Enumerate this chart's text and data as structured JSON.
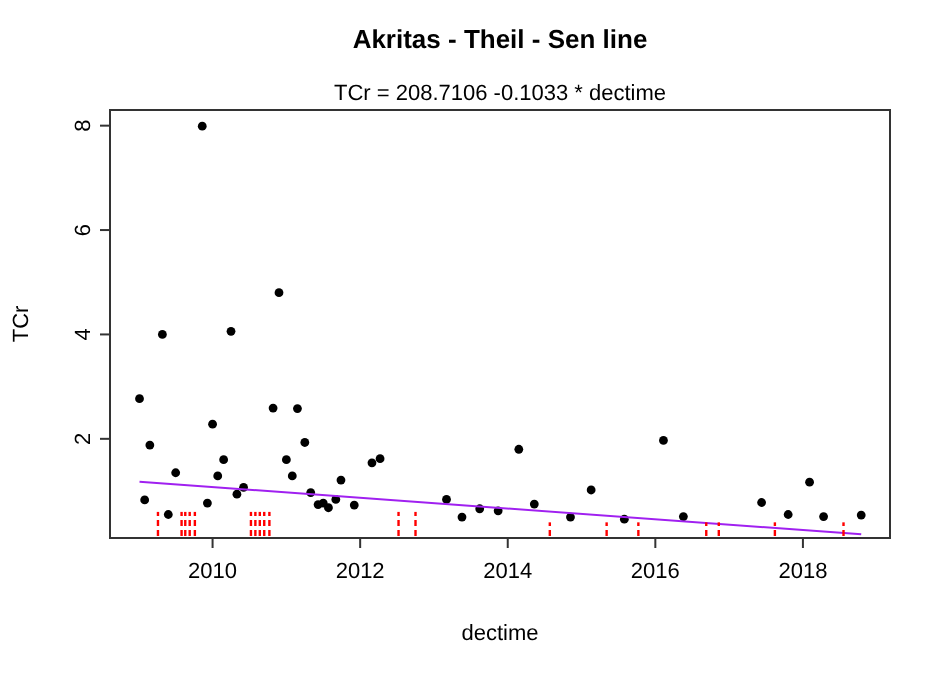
{
  "chart_data": {
    "type": "scatter",
    "title": "Akritas - Theil - Sen line",
    "subtitle": "TCr = 208.7106 -0.1033 * dectime",
    "xlabel": "dectime",
    "ylabel": "TCr",
    "xlim": [
      2008.61,
      2019.18
    ],
    "ylim": [
      0.1,
      8.3
    ],
    "xticks": [
      2010,
      2012,
      2014,
      2016,
      2018
    ],
    "yticks": [
      2,
      4,
      6,
      8
    ],
    "grid": false,
    "series": [
      {
        "color": "#000000",
        "marker": "circle",
        "x": [
          2009.01,
          2009.08,
          2009.15,
          2009.32,
          2009.4,
          2009.5,
          2009.86,
          2009.93,
          2010.0,
          2010.07,
          2010.15,
          2010.25,
          2010.33,
          2010.42,
          2010.82,
          2010.9,
          2011.0,
          2011.08,
          2011.15,
          2011.25,
          2011.33,
          2011.43,
          2011.5,
          2011.57,
          2011.67,
          2011.74,
          2011.92,
          2012.16,
          2012.27,
          2013.17,
          2013.38,
          2013.62,
          2013.87,
          2014.15,
          2014.36,
          2014.85,
          2015.13,
          2015.58,
          2016.11,
          2016.38,
          2017.44,
          2017.8,
          2018.09,
          2018.28,
          2018.79
        ],
        "values": [
          2.77,
          0.83,
          1.88,
          4.0,
          0.55,
          1.35,
          7.99,
          0.77,
          2.28,
          1.29,
          1.6,
          4.06,
          0.94,
          1.07,
          2.59,
          4.8,
          1.6,
          1.29,
          2.58,
          1.93,
          0.97,
          0.74,
          0.77,
          0.68,
          0.84,
          1.21,
          0.73,
          1.54,
          1.62,
          0.84,
          0.5,
          0.66,
          0.62,
          1.8,
          0.75,
          0.5,
          1.02,
          0.46,
          1.97,
          0.51,
          0.78,
          0.55,
          1.17,
          0.51,
          0.54
        ]
      },
      {
        "type": "line",
        "color": "#a020f0",
        "line_style": "solid",
        "x": [
          2009.01,
          2018.79
        ],
        "values": [
          1.18,
          0.17
        ]
      },
      {
        "type": "bar",
        "color": "#ff0000",
        "line_style": "dashed",
        "x": [
          2009.26,
          2009.58,
          2009.63,
          2009.69,
          2009.76,
          2010.52,
          2010.58,
          2010.64,
          2010.7,
          2010.77,
          2012.52,
          2012.75,
          2014.57,
          2015.34,
          2015.77,
          2016.69,
          2016.86,
          2017.62,
          2018.55
        ],
        "values": [
          0.6,
          0.6,
          0.6,
          0.6,
          0.6,
          0.6,
          0.6,
          0.6,
          0.6,
          0.6,
          0.6,
          0.6,
          0.4,
          0.4,
          0.4,
          0.4,
          0.4,
          0.4,
          0.4
        ]
      }
    ]
  }
}
